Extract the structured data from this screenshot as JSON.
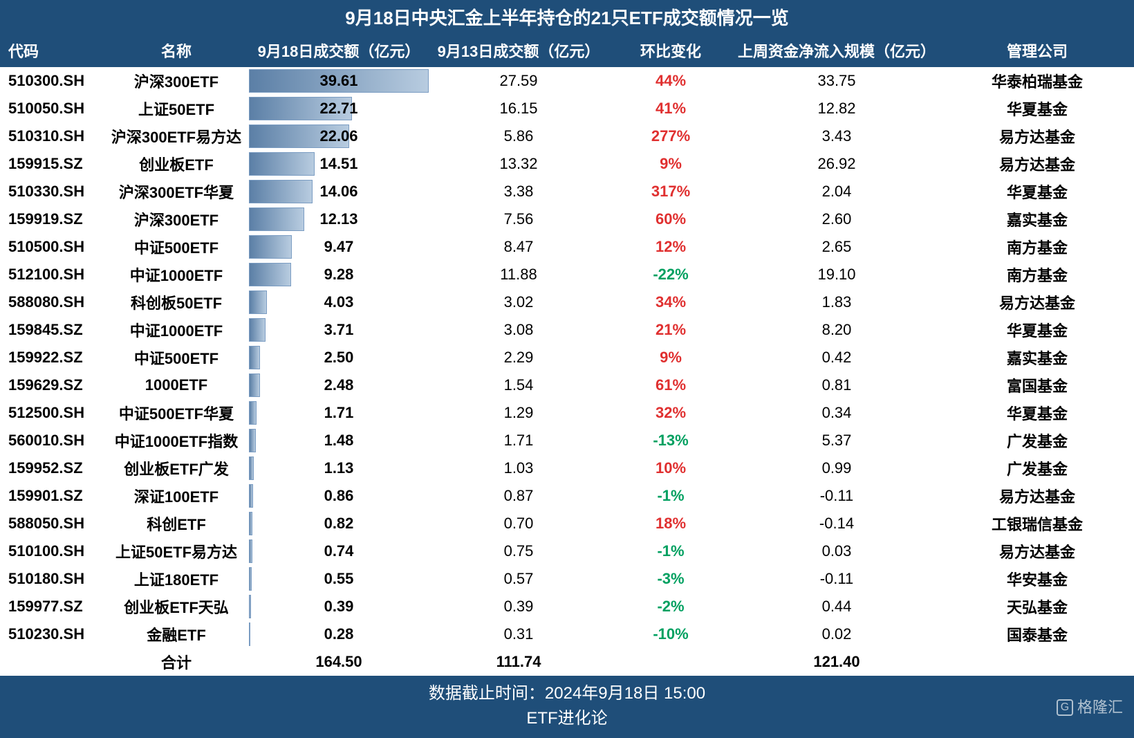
{
  "title": "9月18日中央汇金上半年持仓的21只ETF成交额情况一览",
  "columns": {
    "code": "代码",
    "name": "名称",
    "vol18": "9月18日成交额（亿元）",
    "vol13": "9月13日成交额（亿元）",
    "change": "环比变化",
    "inflow": "上周资金净流入规模（亿元）",
    "mgr": "管理公司"
  },
  "bar_max": 39.61,
  "bar_colors": {
    "start": "#5b7fa6",
    "end": "#b8cce0",
    "border": "#7a9cc2"
  },
  "colors": {
    "header_bg": "#1f4e79",
    "header_text": "#ffffff",
    "positive": "#e03030",
    "negative": "#00a060",
    "body_text": "#000000",
    "background": "#ffffff"
  },
  "rows": [
    {
      "code": "510300.SH",
      "name": "沪深300ETF",
      "vol18": "39.61",
      "vol13": "27.59",
      "change": "44%",
      "change_dir": "pos",
      "inflow": "33.75",
      "mgr": "华泰柏瑞基金"
    },
    {
      "code": "510050.SH",
      "name": "上证50ETF",
      "vol18": "22.71",
      "vol13": "16.15",
      "change": "41%",
      "change_dir": "pos",
      "inflow": "12.82",
      "mgr": "华夏基金"
    },
    {
      "code": "510310.SH",
      "name": "沪深300ETF易方达",
      "vol18": "22.06",
      "vol13": "5.86",
      "change": "277%",
      "change_dir": "pos",
      "inflow": "3.43",
      "mgr": "易方达基金"
    },
    {
      "code": "159915.SZ",
      "name": "创业板ETF",
      "vol18": "14.51",
      "vol13": "13.32",
      "change": "9%",
      "change_dir": "pos",
      "inflow": "26.92",
      "mgr": "易方达基金"
    },
    {
      "code": "510330.SH",
      "name": "沪深300ETF华夏",
      "vol18": "14.06",
      "vol13": "3.38",
      "change": "317%",
      "change_dir": "pos",
      "inflow": "2.04",
      "mgr": "华夏基金"
    },
    {
      "code": "159919.SZ",
      "name": "沪深300ETF",
      "vol18": "12.13",
      "vol13": "7.56",
      "change": "60%",
      "change_dir": "pos",
      "inflow": "2.60",
      "mgr": "嘉实基金"
    },
    {
      "code": "510500.SH",
      "name": "中证500ETF",
      "vol18": "9.47",
      "vol13": "8.47",
      "change": "12%",
      "change_dir": "pos",
      "inflow": "2.65",
      "mgr": "南方基金"
    },
    {
      "code": "512100.SH",
      "name": "中证1000ETF",
      "vol18": "9.28",
      "vol13": "11.88",
      "change": "-22%",
      "change_dir": "neg",
      "inflow": "19.10",
      "mgr": "南方基金"
    },
    {
      "code": "588080.SH",
      "name": "科创板50ETF",
      "vol18": "4.03",
      "vol13": "3.02",
      "change": "34%",
      "change_dir": "pos",
      "inflow": "1.83",
      "mgr": "易方达基金"
    },
    {
      "code": "159845.SZ",
      "name": "中证1000ETF",
      "vol18": "3.71",
      "vol13": "3.08",
      "change": "21%",
      "change_dir": "pos",
      "inflow": "8.20",
      "mgr": "华夏基金"
    },
    {
      "code": "159922.SZ",
      "name": "中证500ETF",
      "vol18": "2.50",
      "vol13": "2.29",
      "change": "9%",
      "change_dir": "pos",
      "inflow": "0.42",
      "mgr": "嘉实基金"
    },
    {
      "code": "159629.SZ",
      "name": "1000ETF",
      "vol18": "2.48",
      "vol13": "1.54",
      "change": "61%",
      "change_dir": "pos",
      "inflow": "0.81",
      "mgr": "富国基金"
    },
    {
      "code": "512500.SH",
      "name": "中证500ETF华夏",
      "vol18": "1.71",
      "vol13": "1.29",
      "change": "32%",
      "change_dir": "pos",
      "inflow": "0.34",
      "mgr": "华夏基金"
    },
    {
      "code": "560010.SH",
      "name": "中证1000ETF指数",
      "vol18": "1.48",
      "vol13": "1.71",
      "change": "-13%",
      "change_dir": "neg",
      "inflow": "5.37",
      "mgr": "广发基金"
    },
    {
      "code": "159952.SZ",
      "name": "创业板ETF广发",
      "vol18": "1.13",
      "vol13": "1.03",
      "change": "10%",
      "change_dir": "pos",
      "inflow": "0.99",
      "mgr": "广发基金"
    },
    {
      "code": "159901.SZ",
      "name": "深证100ETF",
      "vol18": "0.86",
      "vol13": "0.87",
      "change": "-1%",
      "change_dir": "neg",
      "inflow": "-0.11",
      "mgr": "易方达基金"
    },
    {
      "code": "588050.SH",
      "name": "科创ETF",
      "vol18": "0.82",
      "vol13": "0.70",
      "change": "18%",
      "change_dir": "pos",
      "inflow": "-0.14",
      "mgr": "工银瑞信基金"
    },
    {
      "code": "510100.SH",
      "name": "上证50ETF易方达",
      "vol18": "0.74",
      "vol13": "0.75",
      "change": "-1%",
      "change_dir": "neg",
      "inflow": "0.03",
      "mgr": "易方达基金"
    },
    {
      "code": "510180.SH",
      "name": "上证180ETF",
      "vol18": "0.55",
      "vol13": "0.57",
      "change": "-3%",
      "change_dir": "neg",
      "inflow": "-0.11",
      "mgr": "华安基金"
    },
    {
      "code": "159977.SZ",
      "name": "创业板ETF天弘",
      "vol18": "0.39",
      "vol13": "0.39",
      "change": "-2%",
      "change_dir": "neg",
      "inflow": "0.44",
      "mgr": "天弘基金"
    },
    {
      "code": "510230.SH",
      "name": "金融ETF",
      "vol18": "0.28",
      "vol13": "0.31",
      "change": "-10%",
      "change_dir": "neg",
      "inflow": "0.02",
      "mgr": "国泰基金"
    }
  ],
  "total": {
    "label": "合计",
    "vol18": "164.50",
    "vol13": "111.74",
    "inflow": "121.40"
  },
  "footer": {
    "line1": "数据截止时间：2024年9月18日 15:00",
    "line2": "ETF进化论"
  },
  "watermark": "格隆汇"
}
